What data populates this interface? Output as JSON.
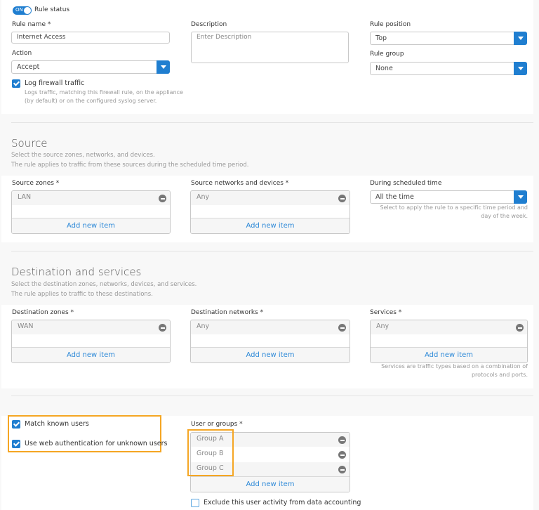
{
  "general": {
    "rule_status_toggle": "ON",
    "rule_status_label": "Rule status",
    "rule_name_label": "Rule name *",
    "rule_name_value": "Internet Access",
    "description_label": "Description",
    "description_placeholder": "Enter Description",
    "rule_position_label": "Rule position",
    "rule_position_value": "Top",
    "action_label": "Action",
    "action_value": "Accept",
    "rule_group_label": "Rule group",
    "rule_group_value": "None",
    "log_label": "Log firewall traffic",
    "log_checked": true,
    "log_help": "Logs traffic, matching this firewall rule, on the appliance (by default) or on the configured syslog server."
  },
  "source": {
    "title": "Source",
    "sub1": "Select the source zones, networks, and devices.",
    "sub2": "The rule applies to traffic from these sources during the scheduled time period.",
    "zones_label": "Source zones *",
    "zones": [
      "LAN"
    ],
    "networks_label": "Source networks and devices *",
    "networks": [
      "Any"
    ],
    "schedule_label": "During scheduled time",
    "schedule_value": "All the time",
    "schedule_help": "Select to apply the rule to a specific time period and day of the week.",
    "add_label": "Add new item"
  },
  "destination": {
    "title": "Destination and services",
    "sub1": "Select the destination zones, networks, devices, and services.",
    "sub2": "The rule applies to traffic to these destinations.",
    "zones_label": "Destination zones *",
    "zones": [
      "WAN"
    ],
    "networks_label": "Destination networks *",
    "networks": [
      "Any"
    ],
    "services_label": "Services *",
    "services": [
      "Any"
    ],
    "services_help": "Services are traffic types based on a combination of protocols and ports.",
    "add_label": "Add new item"
  },
  "users": {
    "match_known_label": "Match known users",
    "match_known_checked": true,
    "web_auth_label": "Use web authentication for unknown users",
    "web_auth_checked": true,
    "groups_label": "User or groups *",
    "groups": [
      "Group A",
      "Group B",
      "Group C"
    ],
    "add_label": "Add new item",
    "exclude_label": "Exclude this user activity from data accounting",
    "exclude_checked": false
  },
  "colors": {
    "accent": "#1f7ed0",
    "highlight": "#f5a623",
    "link": "#2f8ad8"
  }
}
